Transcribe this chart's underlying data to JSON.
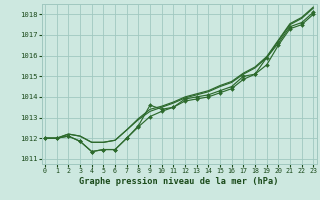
{
  "title": "Graphe pression niveau de la mer (hPa)",
  "hours": [
    0,
    1,
    2,
    3,
    4,
    5,
    6,
    7,
    8,
    9,
    10,
    11,
    12,
    13,
    14,
    15,
    16,
    17,
    18,
    19,
    20,
    21,
    22,
    23
  ],
  "series_with_markers": [
    [
      1012.0,
      1012.0,
      1012.1,
      1011.85,
      1011.35,
      1011.45,
      1011.45,
      1012.0,
      1012.55,
      1013.05,
      1013.3,
      1013.5,
      1013.8,
      1013.9,
      1014.0,
      1014.2,
      1014.4,
      1014.85,
      1015.1,
      1015.55,
      1016.5,
      1017.3,
      1017.5,
      1018.0
    ],
    [
      1012.0,
      1012.0,
      1012.1,
      1011.85,
      1011.35,
      1011.45,
      1011.45,
      1012.0,
      1012.6,
      1013.6,
      1013.4,
      1013.5,
      1013.9,
      1014.0,
      1014.1,
      1014.3,
      1014.5,
      1015.0,
      1015.1,
      1015.9,
      1016.6,
      1017.4,
      1017.6,
      1018.1
    ]
  ],
  "series_smooth": [
    [
      1012.0,
      1012.0,
      1012.2,
      1012.1,
      1011.8,
      1011.8,
      1011.9,
      1012.4,
      1012.9,
      1013.3,
      1013.5,
      1013.7,
      1013.95,
      1014.1,
      1014.25,
      1014.5,
      1014.7,
      1015.1,
      1015.4,
      1015.9,
      1016.7,
      1017.5,
      1017.8,
      1018.3
    ],
    [
      1012.0,
      1012.0,
      1012.2,
      1012.1,
      1011.8,
      1011.8,
      1011.9,
      1012.4,
      1012.95,
      1013.4,
      1013.55,
      1013.75,
      1014.0,
      1014.15,
      1014.3,
      1014.55,
      1014.75,
      1015.15,
      1015.45,
      1015.95,
      1016.75,
      1017.55,
      1017.85,
      1018.35
    ]
  ],
  "line_color": "#2d6a2d",
  "marker_color": "#2d6a2d",
  "bg_color": "#cde8e0",
  "grid_color": "#a0c8c0",
  "text_color": "#1a4a1a",
  "ylim": [
    1010.75,
    1018.5
  ],
  "xlim": [
    -0.3,
    23.3
  ],
  "yticks": [
    1011,
    1012,
    1013,
    1014,
    1015,
    1016,
    1017,
    1018
  ],
  "xticks": [
    0,
    1,
    2,
    3,
    4,
    5,
    6,
    7,
    8,
    9,
    10,
    11,
    12,
    13,
    14,
    15,
    16,
    17,
    18,
    19,
    20,
    21,
    22,
    23
  ]
}
